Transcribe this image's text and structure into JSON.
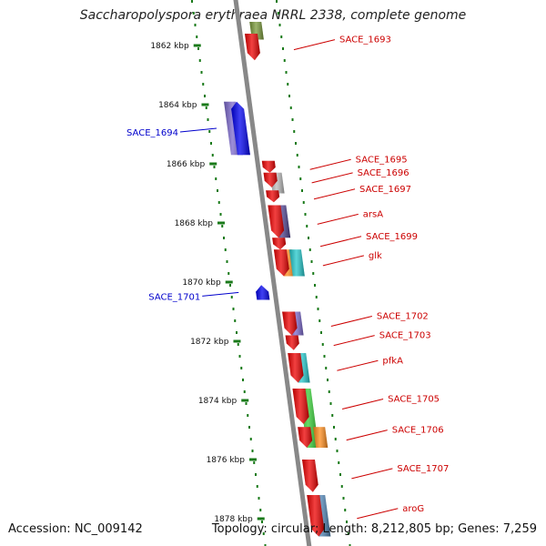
{
  "title": "Saccharopolyspora erythraea NRRL 2338, complete genome",
  "footer": {
    "accession": "Accession: NC_009142",
    "summary": "Topology: circular; Length: 8,212,805 bp; Genes: 7,259"
  },
  "ruler": [
    {
      "label": "1862 kbp",
      "kbp": 1862
    },
    {
      "label": "1864 kbp",
      "kbp": 1864
    },
    {
      "label": "1866 kbp",
      "kbp": 1866
    },
    {
      "label": "1868 kbp",
      "kbp": 1868
    },
    {
      "label": "1870 kbp",
      "kbp": 1870
    },
    {
      "label": "1872 kbp",
      "kbp": 1872
    },
    {
      "label": "1874 kbp",
      "kbp": 1874
    },
    {
      "label": "1876 kbp",
      "kbp": 1876
    },
    {
      "label": "1878 kbp",
      "kbp": 1878
    }
  ],
  "colors": {
    "forward_label": "#cc0000",
    "reverse_label": "#0000cc",
    "backbone": "#888888",
    "ticks": "#1a7a1a"
  },
  "genes": [
    {
      "label": "SACE_1693",
      "strand": "+",
      "start_kbp": 1861.6,
      "end_kbp": 1862.5,
      "color": "#ee0000"
    },
    {
      "label": "SACE_1694",
      "strand": "-",
      "start_kbp": 1863.9,
      "end_kbp": 1865.7,
      "color": "#0000ee"
    },
    {
      "label": "SACE_1695",
      "strand": "+",
      "start_kbp": 1865.9,
      "end_kbp": 1866.3,
      "color": "#ee0000"
    },
    {
      "label": "SACE_1696",
      "strand": "+",
      "start_kbp": 1866.3,
      "end_kbp": 1866.8,
      "color": "#ee0000"
    },
    {
      "label": "SACE_1697",
      "strand": "+",
      "start_kbp": 1866.9,
      "end_kbp": 1867.3,
      "color": "#ee0000"
    },
    {
      "label": "arsA",
      "strand": "+",
      "start_kbp": 1867.4,
      "end_kbp": 1868.5,
      "color": "#ee0000"
    },
    {
      "label": "SACE_1699",
      "strand": "+",
      "start_kbp": 1868.5,
      "end_kbp": 1868.9,
      "color": "#ee0000"
    },
    {
      "label": "glk",
      "strand": "+",
      "start_kbp": 1868.9,
      "end_kbp": 1869.8,
      "color": "#ee0000"
    },
    {
      "label": "SACE_1701",
      "strand": "-",
      "start_kbp": 1870.1,
      "end_kbp": 1870.6,
      "color": "#0000ee"
    },
    {
      "label": "SACE_1702",
      "strand": "+",
      "start_kbp": 1871.0,
      "end_kbp": 1871.8,
      "color": "#ee0000"
    },
    {
      "label": "SACE_1703",
      "strand": "+",
      "start_kbp": 1871.8,
      "end_kbp": 1872.3,
      "color": "#ee0000"
    },
    {
      "label": "pfkA",
      "strand": "+",
      "start_kbp": 1872.4,
      "end_kbp": 1873.4,
      "color": "#ee0000"
    },
    {
      "label": "SACE_1705",
      "strand": "+",
      "start_kbp": 1873.6,
      "end_kbp": 1874.8,
      "color": "#ee0000"
    },
    {
      "label": "SACE_1706",
      "strand": "+",
      "start_kbp": 1874.9,
      "end_kbp": 1875.6,
      "color": "#ee0000"
    },
    {
      "label": "SACE_1707",
      "strand": "+",
      "start_kbp": 1876.0,
      "end_kbp": 1877.1,
      "color": "#ee0000"
    },
    {
      "label": "aroG",
      "strand": "+",
      "start_kbp": 1877.2,
      "end_kbp": 1878.6,
      "color": "#ee0000"
    }
  ],
  "cog_boxes": [
    {
      "name": "cog-box-1693",
      "start_kbp": 1861.2,
      "end_kbp": 1861.8,
      "color": "#7a9a3a",
      "side": "inner"
    },
    {
      "name": "cog-box-1694",
      "start_kbp": 1863.9,
      "end_kbp": 1865.7,
      "color": "#7b68cc",
      "side": "outer-left"
    },
    {
      "name": "cog-box-1696",
      "start_kbp": 1866.3,
      "end_kbp": 1867.0,
      "color": "#bbbbbb",
      "side": "inner"
    },
    {
      "name": "cog-box-arsA",
      "start_kbp": 1867.4,
      "end_kbp": 1868.5,
      "color": "#4b3f8c",
      "side": "inner"
    },
    {
      "name": "cog-box-glk-a",
      "start_kbp": 1868.9,
      "end_kbp": 1869.8,
      "color": "#ff8c1a",
      "side": "inner"
    },
    {
      "name": "cog-box-glk-b",
      "start_kbp": 1868.9,
      "end_kbp": 1869.8,
      "color": "#22c8cc",
      "side": "inner2"
    },
    {
      "name": "cog-box-1702",
      "start_kbp": 1871.0,
      "end_kbp": 1871.8,
      "color": "#7b68cc",
      "side": "inner"
    },
    {
      "name": "cog-box-pfkA",
      "start_kbp": 1872.4,
      "end_kbp": 1873.4,
      "color": "#22c8cc",
      "side": "inner"
    },
    {
      "name": "cog-box-1705",
      "start_kbp": 1873.6,
      "end_kbp": 1875.6,
      "color": "#33cc33",
      "side": "inner"
    },
    {
      "name": "cog-box-1706",
      "start_kbp": 1874.9,
      "end_kbp": 1875.6,
      "color": "#ff8c1a",
      "side": "inner2"
    },
    {
      "name": "cog-box-aroG",
      "start_kbp": 1877.2,
      "end_kbp": 1878.6,
      "color": "#4a7fb0",
      "side": "inner"
    }
  ]
}
